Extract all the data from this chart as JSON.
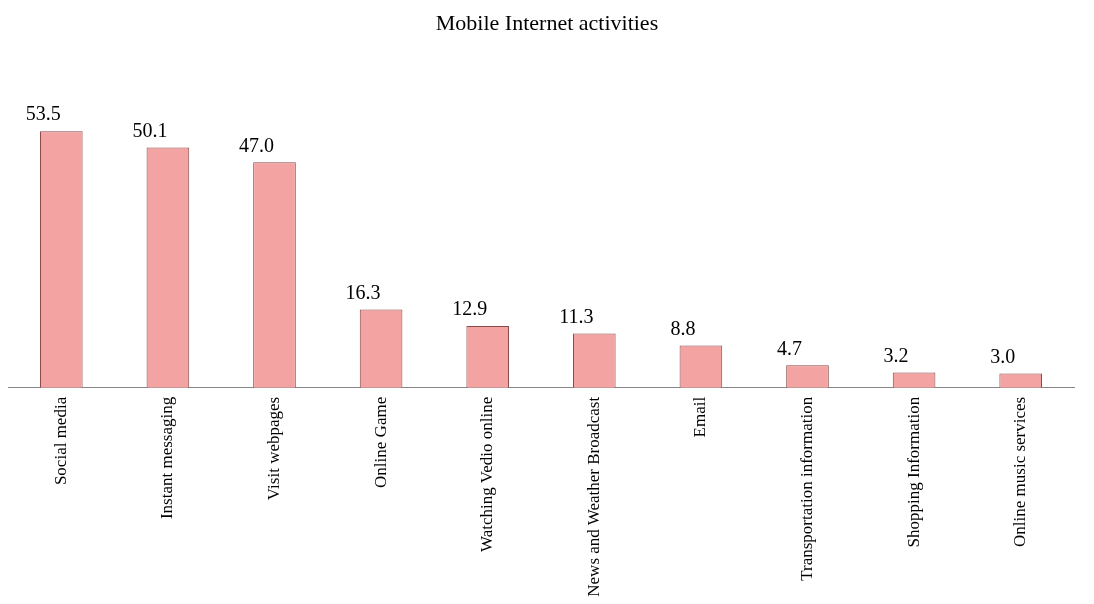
{
  "chart_data": {
    "type": "bar",
    "title": "Mobile Internet activities",
    "categories": [
      "Social media",
      "Instant messaging",
      "Visit webpages",
      "Online Game",
      "Watching Vedio online",
      "News and Weather Broadcast",
      "Email",
      "Transportation information",
      "Shopping Information",
      "Online music services"
    ],
    "values": [
      53.5,
      50.1,
      47.0,
      16.3,
      12.9,
      11.3,
      8.8,
      4.7,
      3.2,
      3.0
    ],
    "value_labels": [
      "53.5",
      "50.1",
      "47.0",
      "16.3",
      "12.9",
      "11.3",
      "8.8",
      "4.7",
      "3.2",
      "3.0"
    ],
    "color": "#f4a3a3",
    "grid": false,
    "legend": false,
    "tick_labels": "x"
  }
}
